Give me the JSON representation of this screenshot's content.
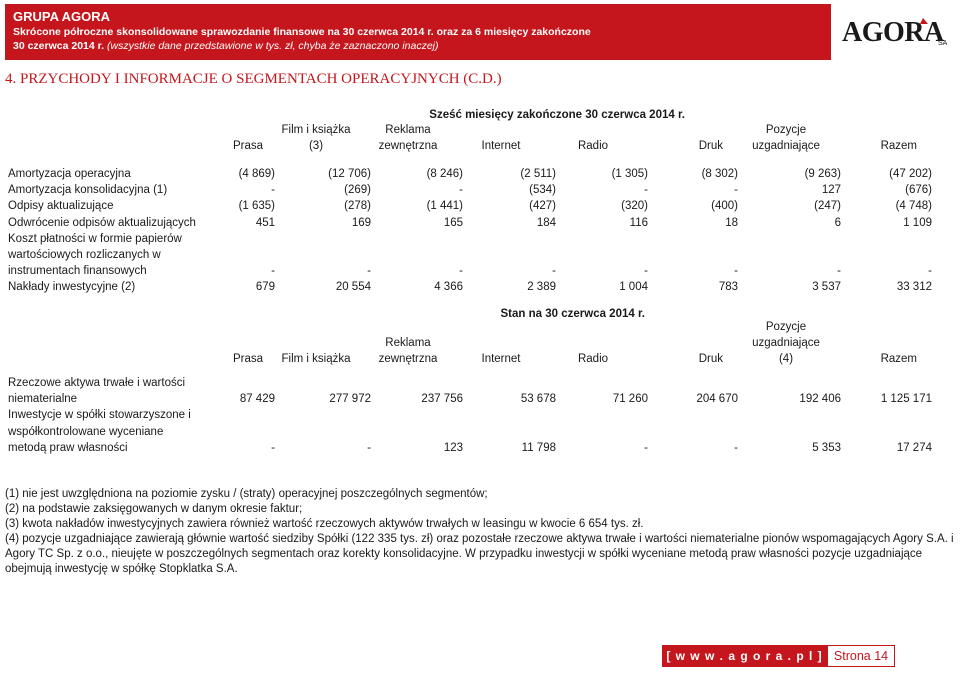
{
  "header": {
    "company": "GRUPA AGORA",
    "subtitle_line1": "Skrócone półroczne skonsolidowane sprawozdanie finansowe na 30 czerwca 2014 r. oraz za 6 miesięcy zakończone",
    "subtitle_line2_bold": "30 czerwca 2014 r.",
    "subtitle_line2_italic": "(wszystkie dane przedstawione w tys. zł, chyba że zaznaczono inaczej)",
    "logo_text": "AGORA",
    "logo_suffix": "SA"
  },
  "section_title": "4. PRZYCHODY I INFORMACJE O SEGMENTACH OPERACYJNYCH (C.D.)",
  "table1": {
    "period": "Sześć miesięcy zakończone 30 czerwca 2014 r.",
    "headers": [
      [
        "",
        "Prasa"
      ],
      [
        "Film i książka",
        "(3)"
      ],
      [
        "Reklama",
        "zewnętrzna"
      ],
      [
        "",
        "Internet"
      ],
      [
        "",
        "Radio"
      ],
      [
        "",
        "Druk"
      ],
      [
        "Pozycje",
        "uzgadniające"
      ],
      [
        "",
        "Razem"
      ]
    ],
    "rows": [
      {
        "label": "Amortyzacja operacyjna",
        "values": [
          "(4 869)",
          "(12 706)",
          "(8 246)",
          "(2 511)",
          "(1 305)",
          "(8 302)",
          "(9 263)",
          "(47 202)"
        ]
      },
      {
        "label": "Amortyzacja konsolidacyjna (1)",
        "values": [
          "-",
          "(269)",
          "-",
          "(534)",
          "-",
          "-",
          "127",
          "(676)"
        ]
      },
      {
        "label": "Odpisy aktualizujące",
        "values": [
          "(1 635)",
          "(278)",
          "(1 441)",
          "(427)",
          "(320)",
          "(400)",
          "(247)",
          "(4 748)"
        ]
      },
      {
        "label": "Odwrócenie odpisów aktualizujących",
        "values": [
          "451",
          "169",
          "165",
          "184",
          "116",
          "18",
          "6",
          "1 109"
        ]
      },
      {
        "label": [
          "Koszt płatności w formie papierów",
          "wartościowych rozliczanych w",
          "instrumentach finansowych"
        ],
        "values": [
          "-",
          "-",
          "-",
          "-",
          "-",
          "-",
          "-",
          "-"
        ]
      },
      {
        "label": "Nakłady inwestycyjne (2)",
        "values": [
          "679",
          "20 554",
          "4 366",
          "2 389",
          "1 004",
          "783",
          "3 537",
          "33 312"
        ]
      }
    ]
  },
  "table2": {
    "period": "Stan na 30 czerwca 2014 r.",
    "headers": [
      [
        "",
        "",
        "Prasa"
      ],
      [
        "",
        "",
        "Film i książka"
      ],
      [
        "",
        "Reklama",
        "zewnętrzna"
      ],
      [
        "",
        "",
        "Internet"
      ],
      [
        "",
        "",
        "Radio"
      ],
      [
        "",
        "",
        "Druk"
      ],
      [
        "Pozycje",
        "uzgadniające",
        "(4)"
      ],
      [
        "",
        "",
        "Razem"
      ]
    ],
    "rows": [
      {
        "label": [
          "Rzeczowe aktywa trwałe i wartości",
          "niematerialne"
        ],
        "values": [
          "87 429",
          "277 972",
          "237 756",
          "53 678",
          "71 260",
          "204 670",
          "192 406",
          "1 125 171"
        ]
      },
      {
        "label": [
          "Inwestycje w spółki stowarzyszone i",
          "współkontrolowane wyceniane",
          "metodą praw własności"
        ],
        "values": [
          "-",
          "-",
          "123",
          "11 798",
          "-",
          "-",
          "5 353",
          "17 274"
        ]
      }
    ]
  },
  "notes": [
    "(1) nie jest uwzględniona na poziomie zysku / (straty) operacyjnej poszczególnych segmentów;",
    "(2) na podstawie zaksięgowanych w danym okresie faktur;",
    "(3) kwota nakładów inwestycyjnych zawiera również wartość rzeczowych aktywów trwałych w leasingu w kwocie 6 654 tys. zł.",
    "(4) pozycje uzgadniające zawierają głównie wartość siedziby Spółki (122 335 tys. zł) oraz pozostałe rzeczowe aktywa trwałe i wartości niematerialne pionów wspomagających Agory S.A. i",
    "Agory TC Sp. z o.o., nieujęte w poszczególnych segmentach oraz korekty konsolidacyjne. W przypadku inwestycji w spółki wyceniane metodą praw własności pozycje uzgadniające",
    "obejmują inwestycję w spółkę Stopklatka S.A."
  ],
  "footer": {
    "website": "[ w w w . a g o r a . p l ]",
    "page": "Strona 14"
  }
}
